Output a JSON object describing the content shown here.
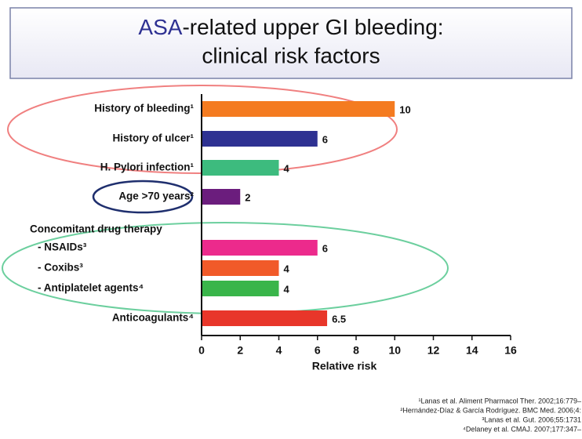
{
  "chart_data": {
    "type": "barh",
    "title": [
      "ASA",
      "-related upper GI bleeding:",
      "clinical risk factors"
    ],
    "categories": [
      "History of bleeding¹",
      "History of ulcer¹",
      "H. Pylori infection¹",
      "Age >70 years²",
      "Concomitant drug therapy",
      "- NSAIDs³",
      "- Coxibs³",
      "- Antiplatelet agents⁴",
      "Anticoagulants⁴"
    ],
    "values": [
      10,
      6,
      4,
      2,
      null,
      6,
      4,
      4,
      6.5
    ],
    "colors": [
      "#f47b20",
      "#2e3192",
      "#3dbb7e",
      "#6b1d7d",
      null,
      "#ec2a8c",
      "#f15a29",
      "#39b54a",
      "#e8362a"
    ],
    "xlabel": "Relative risk",
    "xlim": [
      0,
      16
    ],
    "xticks": [
      0,
      2,
      4,
      6,
      8,
      10,
      12,
      14,
      16
    ],
    "references": [
      "¹Lanas et al. Aliment Pharmacol Ther. 2002;16:779–",
      "²Hernández-Díaz & García Rodríguez. BMC Med. 2006;4:",
      "³Lanas et al. Gut. 2006;55:1731",
      "⁴Delaney et al. CMAJ. 2007;177:347–"
    ]
  }
}
